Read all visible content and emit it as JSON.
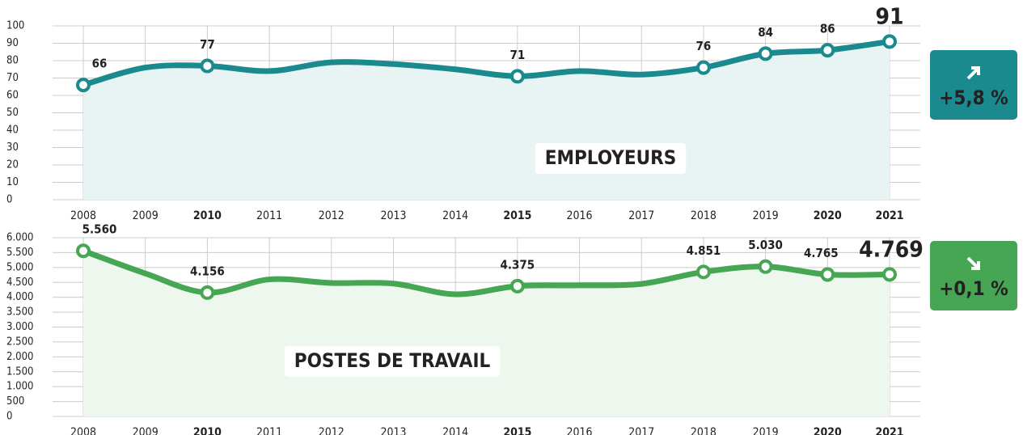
{
  "chart_data": [
    {
      "type": "line",
      "title": "EMPLOYEURS",
      "badge": "+5,8 %",
      "trend": "up",
      "color": "#1a8a8f",
      "area_color": "#e8f3f3",
      "categories": [
        "2008",
        "2009",
        "2010",
        "2011",
        "2012",
        "2013",
        "2014",
        "2015",
        "2016",
        "2017",
        "2018",
        "2019",
        "2020",
        "2021"
      ],
      "bold": [
        false,
        false,
        true,
        false,
        false,
        false,
        false,
        true,
        false,
        false,
        false,
        false,
        true,
        true
      ],
      "values": [
        66,
        76,
        77,
        74,
        79,
        78,
        75,
        71,
        74,
        72,
        76,
        84,
        86,
        91
      ],
      "value_labels": [
        "66",
        null,
        "77",
        null,
        null,
        null,
        null,
        "71",
        null,
        null,
        "76",
        "84",
        "86",
        "91"
      ],
      "ylim": [
        0,
        100
      ],
      "yticks": [
        0,
        10,
        20,
        30,
        40,
        50,
        60,
        70,
        80,
        90,
        100
      ],
      "grid": true
    },
    {
      "type": "line",
      "title": "POSTES DE TRAVAIL",
      "badge": "+0,1 %",
      "trend": "down",
      "color": "#46a653",
      "area_color": "#eef7ee",
      "categories": [
        "2008",
        "2009",
        "2010",
        "2011",
        "2012",
        "2013",
        "2014",
        "2015",
        "2016",
        "2017",
        "2018",
        "2019",
        "2020",
        "2021"
      ],
      "bold": [
        false,
        false,
        true,
        false,
        false,
        false,
        false,
        true,
        false,
        false,
        false,
        false,
        true,
        true
      ],
      "values": [
        5560,
        4800,
        4156,
        4600,
        4480,
        4460,
        4100,
        4375,
        4400,
        4450,
        4851,
        5030,
        4765,
        4769
      ],
      "value_labels": [
        "5.560",
        null,
        "4.156",
        null,
        null,
        null,
        null,
        "4.375",
        null,
        null,
        "4.851",
        "5.030",
        "4.765",
        "4.769"
      ],
      "ylim": [
        0,
        6000
      ],
      "yticks": [
        0,
        500,
        {
          "value": 1000,
          "label": "1.000"
        },
        {
          "value": 1500,
          "label": "1.500"
        },
        {
          "value": 2000,
          "label": "2.000"
        },
        {
          "value": 2500,
          "label": "2.500"
        },
        {
          "value": 3000,
          "label": "3.000"
        },
        {
          "value": 3500,
          "label": "3.500"
        },
        {
          "value": 4000,
          "label": "4.000"
        },
        {
          "value": 4500,
          "label": "4.500"
        },
        {
          "value": 5000,
          "label": "5.000"
        },
        {
          "value": 5500,
          "label": "5.500"
        },
        {
          "value": 6000,
          "label": "6.000"
        }
      ],
      "grid": true
    }
  ]
}
